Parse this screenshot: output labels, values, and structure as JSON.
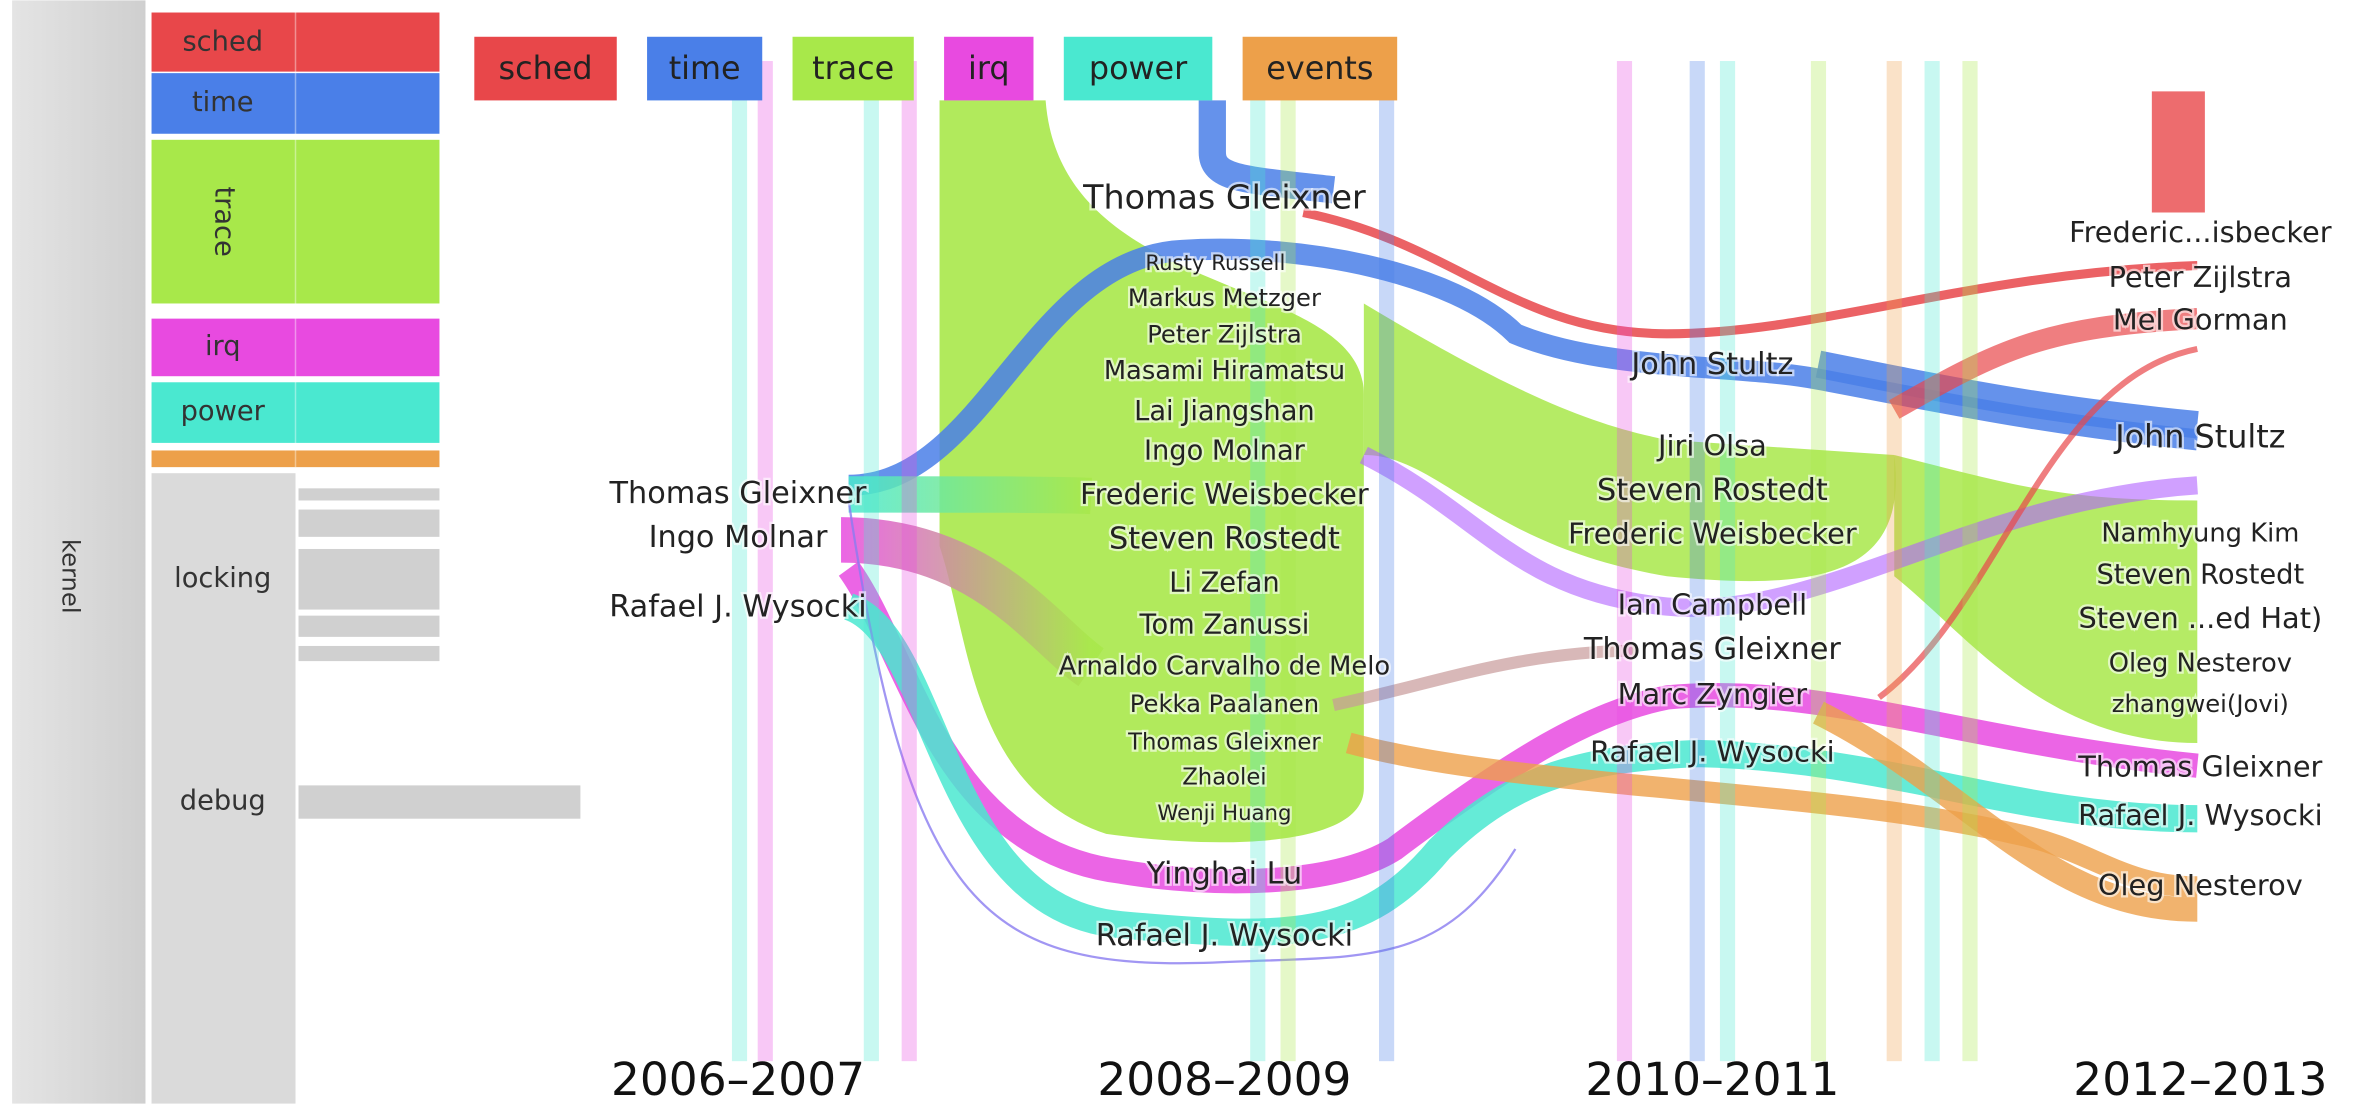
{
  "hierarchy": {
    "root": "kernel",
    "modules": [
      "sched",
      "time",
      "trace",
      "irq",
      "power",
      "locking",
      "debug"
    ]
  },
  "legend": [
    "sched",
    "time",
    "trace",
    "irq",
    "power",
    "events"
  ],
  "columns": [
    {
      "year": "2006–2007",
      "names": [
        "Thomas Gleixner",
        "Ingo Molnar",
        "Rafael J. Wysocki"
      ]
    },
    {
      "year": "2008–2009",
      "names": [
        "Thomas Gleixner",
        "Rusty Russell",
        "Markus Metzger",
        "Peter Zijlstra",
        "Masami Hiramatsu",
        "Lai Jiangshan",
        "Ingo Molnar",
        "Frederic Weisbecker",
        "Steven Rostedt",
        "Li Zefan",
        "Tom Zanussi",
        "Arnaldo Carvalho de Melo",
        "Pekka Paalanen",
        "Thomas Gleixner",
        "Zhaolei",
        "Wenji Huang",
        "Yinghai Lu",
        "Rafael J. Wysocki"
      ]
    },
    {
      "year": "2010–2011",
      "names": [
        "John Stultz",
        "Jiri Olsa",
        "Steven Rostedt",
        "Frederic Weisbecker",
        "Ian Campbell",
        "Thomas Gleixner",
        "Marc Zyngier",
        "Rafael J. Wysocki"
      ]
    },
    {
      "year": "2012–2013",
      "names": [
        "Frederic...isbecker",
        "Peter Zijlstra",
        "Mel Gorman",
        "John Stultz",
        "Namhyung Kim",
        "Steven Rostedt",
        "Steven ...ed Hat)",
        "Oleg Nesterov",
        "zhangwei(Jovi)",
        "Thomas Gleixner",
        "Rafael J. Wysocki",
        "Oleg Nesterov"
      ]
    }
  ]
}
